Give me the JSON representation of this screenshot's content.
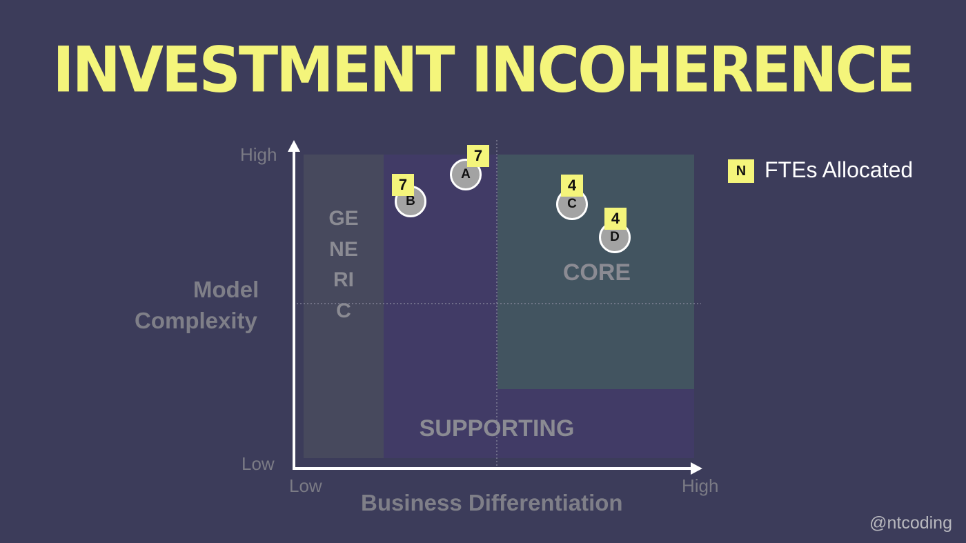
{
  "title": "INVESTMENT INCOHERENCE",
  "y_axis": {
    "title_line1": "Model",
    "title_line2": "Complexity",
    "high": "High",
    "low": "Low"
  },
  "x_axis": {
    "title": "Business Differentiation",
    "low": "Low",
    "high": "High"
  },
  "regions": {
    "generic": "GENERIC",
    "core": "CORE",
    "supporting": "SUPPORTING"
  },
  "legend": {
    "symbol": "N",
    "label": "FTEs Allocated"
  },
  "items": [
    {
      "label": "A",
      "fte": "7"
    },
    {
      "label": "B",
      "fte": "7"
    },
    {
      "label": "C",
      "fte": "4"
    },
    {
      "label": "D",
      "fte": "4"
    }
  ],
  "credit": "@ntcoding",
  "colors": {
    "background": "#3c3c5a",
    "title": "#f4f57b",
    "generic": "#47495d",
    "supporting": "#413b66",
    "core": "#425460"
  }
}
